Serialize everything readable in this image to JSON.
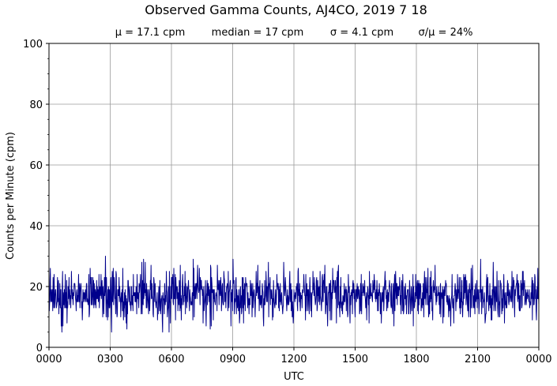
{
  "chart_data": {
    "type": "line",
    "title": "Observed Gamma Counts, AJ4CO, 2019 7 18",
    "stats": [
      "μ = 17.1 cpm",
      "median = 17 cpm",
      "σ = 4.1 cpm",
      "σ/μ = 24%"
    ],
    "xlabel": "UTC",
    "ylabel": "Counts per Minute (cpm)",
    "xlim": [
      0,
      1440
    ],
    "ylim": [
      0,
      100
    ],
    "x_ticks": [
      0,
      180,
      360,
      540,
      720,
      900,
      1080,
      1260,
      1440
    ],
    "x_tick_labels": [
      "0000",
      "0300",
      "0600",
      "0900",
      "1200",
      "1500",
      "1800",
      "2100",
      "0000"
    ],
    "y_ticks": [
      0,
      20,
      40,
      60,
      80,
      100
    ],
    "y_tick_labels": [
      "0",
      "20",
      "40",
      "60",
      "80",
      "100"
    ],
    "grid": true,
    "series": [
      {
        "color": "#00008b",
        "sampling": "1 minute",
        "mean": 17.1,
        "median": 17,
        "std": 4.1,
        "min": 5,
        "max": 31
      }
    ]
  }
}
